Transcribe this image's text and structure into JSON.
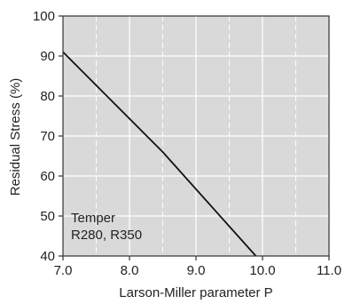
{
  "chart_data": {
    "type": "line",
    "title": "",
    "xlabel": "Larson-Miller parameter P",
    "ylabel": "Residual Stress (%)",
    "xlim": [
      7.0,
      11.0
    ],
    "ylim": [
      40,
      100
    ],
    "x_ticks": [
      "7.0",
      "8.0",
      "9.0",
      "10.0",
      "11.0"
    ],
    "y_ticks": [
      "40",
      "50",
      "60",
      "70",
      "80",
      "90",
      "100"
    ],
    "x_tick_values": [
      7.0,
      8.0,
      9.0,
      10.0,
      11.0
    ],
    "y_tick_values": [
      40,
      50,
      60,
      70,
      80,
      90,
      100
    ],
    "grid": true,
    "series": [
      {
        "x": [
          7.0,
          8.5,
          9.9
        ],
        "y": [
          91,
          66,
          40
        ]
      }
    ],
    "annotations": [
      "Temper",
      "R280, R350"
    ],
    "colors": {
      "plot_background": "#d9d9d9",
      "line": "#111111",
      "grid": "#ffffff"
    }
  }
}
